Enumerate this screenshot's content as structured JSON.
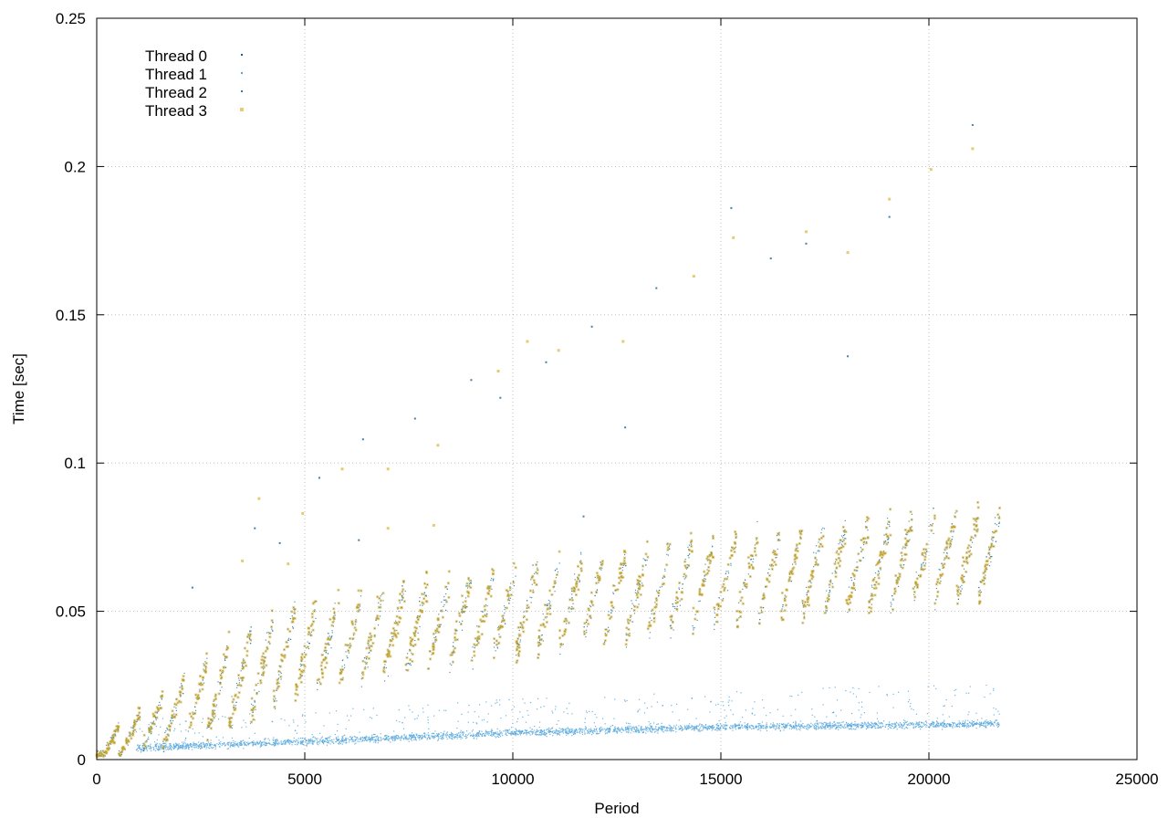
{
  "chart_data": {
    "type": "scatter",
    "title": "",
    "xlabel": "Period",
    "ylabel": "Time [sec]",
    "xlim": [
      0,
      25000
    ],
    "ylim": [
      0,
      0.25
    ],
    "x_ticks": [
      "0",
      "5000",
      "10000",
      "15000",
      "20000",
      "25000"
    ],
    "y_ticks": [
      "0",
      "0.05",
      "0.1",
      "0.15",
      "0.2",
      "0.25"
    ],
    "x_tick_values": [
      0,
      5000,
      10000,
      15000,
      20000,
      25000
    ],
    "y_tick_values": [
      0,
      0.05,
      0.1,
      0.15,
      0.2,
      0.25
    ],
    "grid": true,
    "legend_position": "top-left",
    "x_data_max": 21700,
    "series": [
      {
        "name": "Thread 0",
        "color": "#1a5e8a",
        "marker": "dot",
        "pattern": "sawtooth",
        "cycle_period": 530,
        "trend": [
          [
            0,
            0.002
          ],
          [
            5000,
            0.038
          ],
          [
            10000,
            0.05
          ],
          [
            15000,
            0.06
          ],
          [
            20000,
            0.068
          ],
          [
            21700,
            0.07
          ]
        ],
        "amplitude": 0.014,
        "spread": 0.007
      },
      {
        "name": "Thread 1",
        "color": "#56a7dc",
        "marker": "dot",
        "pattern": "band",
        "x_start": 950,
        "trend": [
          [
            950,
            0.004
          ],
          [
            5000,
            0.006
          ],
          [
            10000,
            0.009
          ],
          [
            15000,
            0.011
          ],
          [
            21700,
            0.012
          ]
        ],
        "spread": 0.0018,
        "outlier_max": 0.026
      },
      {
        "name": "Thread 2",
        "color": "#2f7fa8",
        "marker": "dot",
        "pattern": "sawtooth",
        "cycle_period": 530,
        "trend": [
          [
            0,
            0.002
          ],
          [
            5000,
            0.038
          ],
          [
            10000,
            0.05
          ],
          [
            15000,
            0.06
          ],
          [
            20000,
            0.068
          ],
          [
            21700,
            0.07
          ]
        ],
        "amplitude": 0.014,
        "spread": 0.007
      },
      {
        "name": "Thread 3",
        "color": "#d4a91c",
        "marker": "square",
        "pattern": "sawtooth",
        "cycle_period": 530,
        "trend": [
          [
            0,
            0.002
          ],
          [
            5000,
            0.038
          ],
          [
            10000,
            0.05
          ],
          [
            15000,
            0.06
          ],
          [
            20000,
            0.068
          ],
          [
            21700,
            0.07
          ]
        ],
        "amplitude": 0.014,
        "spread": 0.007
      }
    ],
    "outliers": [
      [
        3900,
        0.088
      ],
      [
        4400,
        0.073
      ],
      [
        4950,
        0.083
      ],
      [
        5350,
        0.095
      ],
      [
        5900,
        0.098
      ],
      [
        6400,
        0.108
      ],
      [
        7000,
        0.098
      ],
      [
        7650,
        0.115
      ],
      [
        8200,
        0.106
      ],
      [
        9000,
        0.128
      ],
      [
        9650,
        0.131
      ],
      [
        9700,
        0.122
      ],
      [
        10350,
        0.141
      ],
      [
        10800,
        0.134
      ],
      [
        11100,
        0.138
      ],
      [
        11900,
        0.146
      ],
      [
        12650,
        0.141
      ],
      [
        13450,
        0.159
      ],
      [
        14350,
        0.163
      ],
      [
        15250,
        0.186
      ],
      [
        15300,
        0.176
      ],
      [
        16200,
        0.169
      ],
      [
        17050,
        0.178
      ],
      [
        17050,
        0.174
      ],
      [
        18050,
        0.171
      ],
      [
        18050,
        0.136
      ],
      [
        19050,
        0.189
      ],
      [
        19050,
        0.183
      ],
      [
        20050,
        0.199
      ],
      [
        21050,
        0.214
      ],
      [
        21050,
        0.206
      ],
      [
        12700,
        0.112
      ],
      [
        7000,
        0.078
      ],
      [
        3800,
        0.078
      ],
      [
        3500,
        0.067
      ],
      [
        2300,
        0.058
      ],
      [
        4600,
        0.066
      ],
      [
        6300,
        0.074
      ],
      [
        8100,
        0.079
      ],
      [
        11700,
        0.082
      ]
    ]
  }
}
